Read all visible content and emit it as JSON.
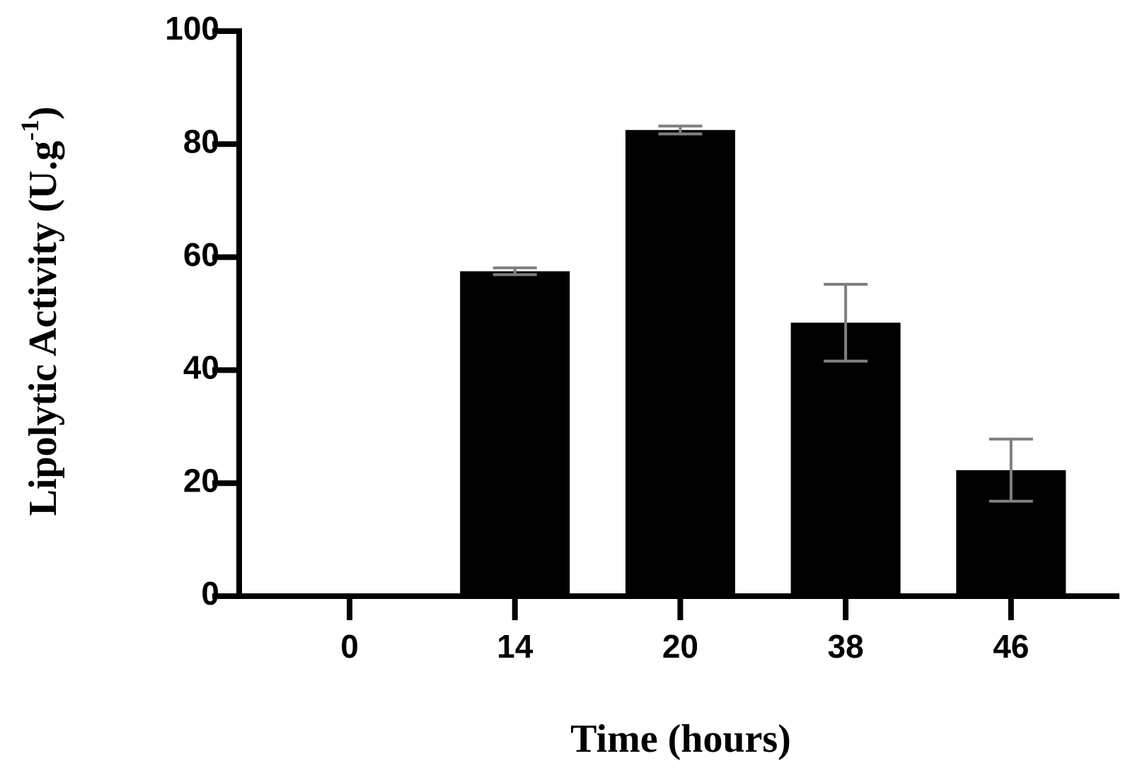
{
  "chart_data": {
    "type": "bar",
    "xlabel": "Time (hours)",
    "ylabel": {
      "text": "Lipolytic Activity (U.g",
      "superscript": "-1",
      "suffix": ")"
    },
    "categories": [
      "0",
      "14",
      "20",
      "38",
      "46"
    ],
    "values": [
      0,
      57.5,
      82.5,
      48.4,
      22.3
    ],
    "errors": [
      null,
      0.6,
      0.7,
      6.8,
      5.5
    ],
    "color": "#000000",
    "error_color": "#808080",
    "ylim": [
      0,
      100
    ],
    "yticks": [
      0,
      20,
      40,
      60,
      80,
      100
    ],
    "grid": false
  }
}
